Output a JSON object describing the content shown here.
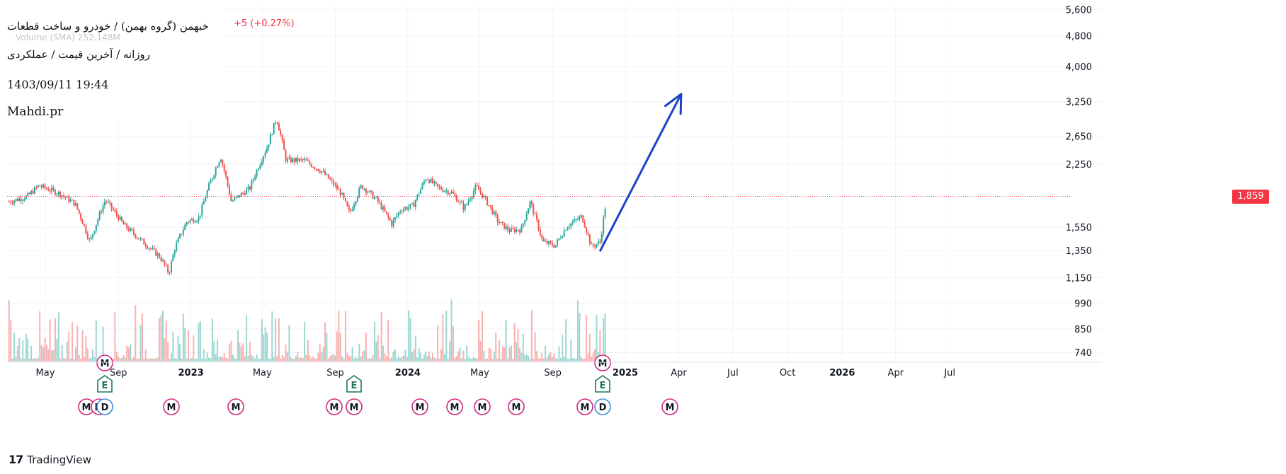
{
  "header": {
    "symbol_line": "خبهمن (گروه بهمن) / خودرو و ساخت قطعات",
    "sub_line": "روزانه / آخرین قیمت / عملکردی",
    "datetime": "1403/09/11 19:44",
    "author": "Mahdi.pr",
    "change": "+5 (+0.27%)",
    "volume_label": "Volume (SMA)  252.148M"
  },
  "last_price_tag": "1,859",
  "branding": {
    "name": "TradingView",
    "logo": "17"
  },
  "colors": {
    "up": "#26a69a",
    "down": "#ef5350",
    "arrow": "#1e40c8",
    "last_price": "#f23645"
  },
  "event_markers": [
    {
      "label": "M"
    },
    {
      "label": "M"
    },
    {
      "label": "D"
    },
    {
      "label": "E"
    },
    {
      "label": "M"
    },
    {
      "label": "M"
    },
    {
      "label": "M"
    },
    {
      "label": "M"
    },
    {
      "label": "E"
    },
    {
      "label": "M"
    },
    {
      "label": "M"
    },
    {
      "label": "M"
    },
    {
      "label": "M"
    },
    {
      "label": "M"
    },
    {
      "label": "D"
    },
    {
      "label": "E"
    },
    {
      "label": "M"
    },
    {
      "label": "M"
    }
  ],
  "chart_data": {
    "type": "candlestick",
    "y_scale": "log",
    "y_ticks": [
      "5,600",
      "4,800",
      "4,000",
      "3,250",
      "2,650",
      "2,250",
      "1,550",
      "1,350",
      "1,150",
      "990",
      "850",
      "740"
    ],
    "x_ticks": [
      "May",
      "Sep",
      "2023",
      "May",
      "Sep",
      "2024",
      "May",
      "Sep",
      "2025",
      "Apr",
      "Jul",
      "Oct",
      "2026",
      "Apr",
      "Jul"
    ],
    "x_ticks_bold": [
      false,
      false,
      true,
      false,
      false,
      true,
      false,
      false,
      true,
      false,
      false,
      false,
      true,
      false,
      false
    ],
    "last_price": 1859,
    "price_path": [
      [
        "2022-03-01",
        1800
      ],
      [
        "2022-04-01",
        1860
      ],
      [
        "2022-04-20",
        1980
      ],
      [
        "2022-05-25",
        1890
      ],
      [
        "2022-06-20",
        1780
      ],
      [
        "2022-07-15",
        1420
      ],
      [
        "2022-08-10",
        1820
      ],
      [
        "2022-09-10",
        1570
      ],
      [
        "2022-10-10",
        1430
      ],
      [
        "2022-11-10",
        1300
      ],
      [
        "2022-11-25",
        1180
      ],
      [
        "2022-12-05",
        1370
      ],
      [
        "2022-12-25",
        1600
      ],
      [
        "2023-01-15",
        1640
      ],
      [
        "2023-01-30",
        1950
      ],
      [
        "2023-02-20",
        2350
      ],
      [
        "2023-03-10",
        1800
      ],
      [
        "2023-04-10",
        1950
      ],
      [
        "2023-05-10",
        2500
      ],
      [
        "2023-05-25",
        2950
      ],
      [
        "2023-06-10",
        2300
      ],
      [
        "2023-07-10",
        2300
      ],
      [
        "2023-08-10",
        2150
      ],
      [
        "2023-09-10",
        1900
      ],
      [
        "2023-09-25",
        1680
      ],
      [
        "2023-10-15",
        1980
      ],
      [
        "2023-11-10",
        1820
      ],
      [
        "2023-12-05",
        1580
      ],
      [
        "2023-12-20",
        1720
      ],
      [
        "2024-01-10",
        1760
      ],
      [
        "2024-02-01",
        2080
      ],
      [
        "2024-02-20",
        1960
      ],
      [
        "2024-03-15",
        1900
      ],
      [
        "2024-04-05",
        1730
      ],
      [
        "2024-04-25",
        1970
      ],
      [
        "2024-05-15",
        1780
      ],
      [
        "2024-06-01",
        1600
      ],
      [
        "2024-06-20",
        1520
      ],
      [
        "2024-07-10",
        1530
      ],
      [
        "2024-07-25",
        1800
      ],
      [
        "2024-08-15",
        1420
      ],
      [
        "2024-09-05",
        1390
      ],
      [
        "2024-09-25",
        1560
      ],
      [
        "2024-10-20",
        1650
      ],
      [
        "2024-11-05",
        1380
      ],
      [
        "2024-11-20",
        1420
      ],
      [
        "2024-12-01",
        1859
      ]
    ],
    "projection_arrow": {
      "from": [
        "2024-11-20",
        1350
      ],
      "to": [
        "2025-04-05",
        3400
      ]
    },
    "volume": {
      "max": 252.148,
      "unit": "M"
    }
  }
}
